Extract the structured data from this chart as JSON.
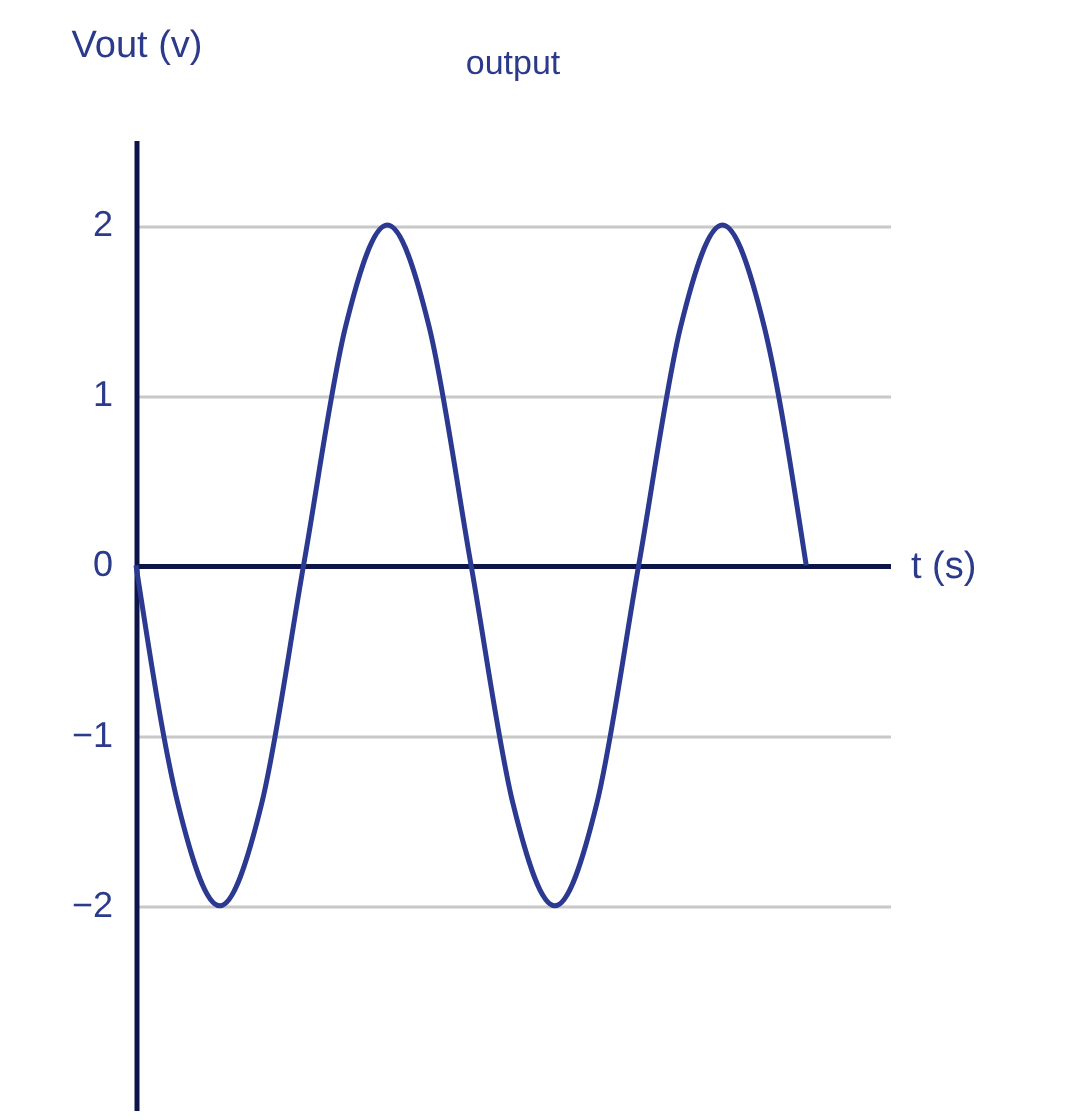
{
  "chart_data": {
    "type": "line",
    "title": "output",
    "xlabel": "t (s)",
    "ylabel": "Vout (v)",
    "categories": [
      null,
      null,
      null,
      null,
      null,
      null,
      null,
      null,
      null,
      null,
      null,
      null,
      null,
      null,
      null,
      null,
      null
    ],
    "values": [
      0,
      -1.4,
      -2,
      -1.4,
      0,
      1.4,
      2,
      1.4,
      0,
      -1.4,
      -2,
      -1.4,
      0,
      1.4,
      2,
      1.4,
      0
    ],
    "color": "#2b3990",
    "ylim": [
      -3.2,
      2.5
    ],
    "yticks": [
      -2,
      -1,
      0,
      1,
      2
    ],
    "grid": "y",
    "tick_labels": "y"
  }
}
